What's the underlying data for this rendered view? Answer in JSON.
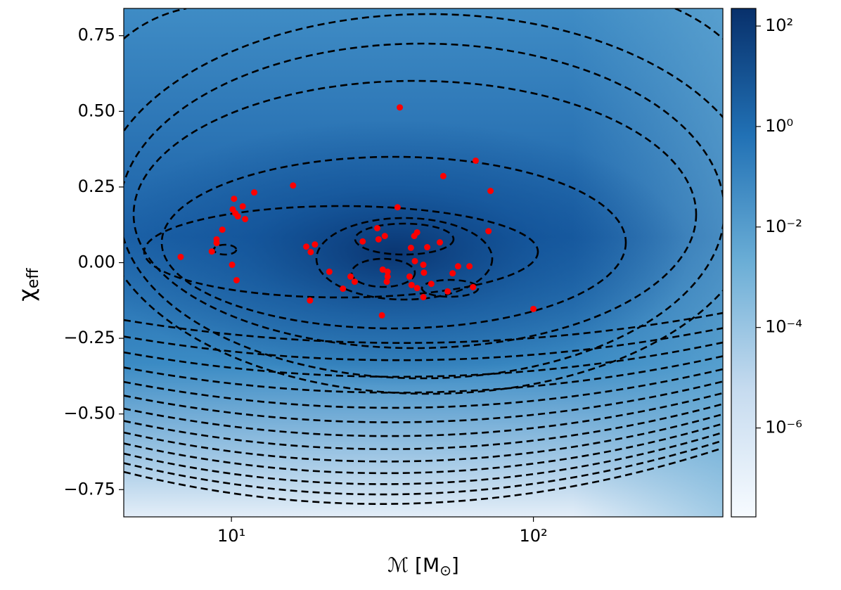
{
  "chart_data": {
    "type": "scatter",
    "xlabel": {
      "main": "ℳ [M",
      "sub": "⊙",
      "tail": "]"
    },
    "ylabel": {
      "main": "χ",
      "sub": "eff"
    },
    "xscale": "log",
    "xlim": [
      4.4,
      424
    ],
    "ylim": [
      -0.84,
      0.84
    ],
    "xticks": [
      {
        "value": 10,
        "label": "10¹"
      },
      {
        "value": 100,
        "label": "10²"
      }
    ],
    "yticks": [
      {
        "value": -0.75,
        "label": "−0.75"
      },
      {
        "value": -0.5,
        "label": "−0.50"
      },
      {
        "value": -0.25,
        "label": "−0.25"
      },
      {
        "value": 0,
        "label": "0.00"
      },
      {
        "value": 0.25,
        "label": "0.25"
      },
      {
        "value": 0.5,
        "label": "0.50"
      },
      {
        "value": 0.75,
        "label": "0.75"
      }
    ],
    "color": "#ff0000",
    "x": [
      6.79,
      8.61,
      8.93,
      8.93,
      9.33,
      10.05,
      10.4,
      10.2,
      10.1,
      10.3,
      10.5,
      10.9,
      11.1,
      11.9,
      16.0,
      17.7,
      18.3,
      18.9,
      18.2,
      21.1,
      23.4,
      24.8,
      25.6,
      27.2,
      30.4,
      30.7,
      32.2,
      31.5,
      31.7,
      32.9,
      32.9,
      32.7,
      35.5,
      36.1,
      38.9,
      39.3,
      40.3,
      41.2,
      40.5,
      39.5,
      41.2,
      43.2,
      43.4,
      43.2,
      44.5,
      45.9,
      49.0,
      50.3,
      52.0,
      54.0,
      56.3,
      61.4,
      63.1,
      64.4,
      71.0,
      72.1,
      100
    ],
    "values": [
      0.019,
      0.037,
      0.065,
      0.077,
      0.109,
      -0.007,
      -0.058,
      0.211,
      0.176,
      0.163,
      0.153,
      0.186,
      0.144,
      0.232,
      0.255,
      0.053,
      0.035,
      0.06,
      -0.125,
      -0.03,
      -0.086,
      -0.046,
      -0.063,
      0.07,
      0.114,
      0.077,
      0.088,
      -0.174,
      -0.023,
      -0.03,
      -0.046,
      -0.063,
      0.183,
      0.513,
      -0.046,
      0.049,
      0.088,
      0.1,
      0.005,
      -0.074,
      -0.084,
      -0.007,
      -0.033,
      -0.114,
      0.051,
      -0.07,
      0.067,
      0.286,
      -0.095,
      -0.035,
      -0.012,
      -0.012,
      -0.081,
      0.337,
      0.104,
      0.237,
      -0.153
    ],
    "colorbar": {
      "scale": "log",
      "lim": [
        1.7e-08,
        224
      ],
      "ticks": [
        {
          "value": 1e-06,
          "label": "10⁻⁶"
        },
        {
          "value": 0.0001,
          "label": "10⁻⁴"
        },
        {
          "value": 0.01,
          "label": "10⁻²"
        },
        {
          "value": 1,
          "label": "10⁰"
        },
        {
          "value": 100,
          "label": "10²"
        }
      ],
      "colors": [
        "#f7fbff",
        "#c6dbef",
        "#6baed6",
        "#2171b5",
        "#08306b"
      ]
    }
  }
}
